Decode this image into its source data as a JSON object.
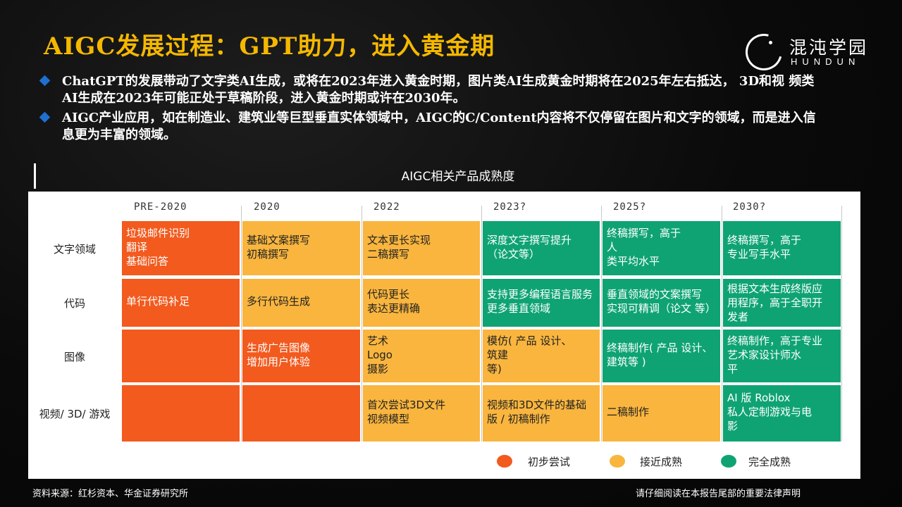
{
  "slide": {
    "title": "AIGC发展过程：GPT助力，进入黄金期",
    "logo": {
      "cn": "混沌学园",
      "en": "HUNDUN"
    },
    "bullets": [
      "ChatGPT的发展带动了文字类AI生成，或将在2023年进入黄金时期，图片类AI生成黄金时期将在2025年左右抵达， 3D和视 频类 AI生成在2023年可能正处于草稿阶段，进入黄金时期或许在2030年。",
      "AIGC产业应用，如在制造业、建筑业等巨型垂直实体领域中，AIGC的C/Content内容将不仅停留在图片和文字的领域，而是进入信息更为丰富的领域。"
    ],
    "chart_title": "AIGC相关产品成熟度",
    "footer_left": "资料来源：红杉资本、华金证券研究所",
    "footer_right": "请仔细阅读在本报告尾部的重要法律声明"
  },
  "chart_data": {
    "type": "table",
    "columns": [
      "PRE-2020",
      "2020",
      "2022",
      "2023?",
      "2025?",
      "2030?"
    ],
    "rows": [
      {
        "label": "文字领域",
        "cells": [
          {
            "text": "垃圾邮件识别\n翻译\n基础问答",
            "level": "初步尝试"
          },
          {
            "text": "基础文案撰写\n初稿撰写",
            "level": "接近成熟"
          },
          {
            "text": "文本更长实现\n二稿撰写",
            "level": "接近成熟"
          },
          {
            "text": "深度文字撰写提升\n（论文等）",
            "level": "完全成熟"
          },
          {
            "text": "终稿撰写，高于\n人\n类平均水平",
            "level": "完全成熟"
          },
          {
            "text": "终稿撰写，高于\n专业写手水平",
            "level": "完全成熟"
          }
        ]
      },
      {
        "label": "代码",
        "cells": [
          {
            "text": "单行代码补足",
            "level": "初步尝试"
          },
          {
            "text": "多行代码生成",
            "level": "接近成熟"
          },
          {
            "text": "代码更长\n表达更精确",
            "level": "接近成熟"
          },
          {
            "text": "支持更多编程语言服务\n更多垂直领域",
            "level": "完全成熟"
          },
          {
            "text": "垂直领域的文案撰写\n实现可精调（论文 等）",
            "level": "完全成熟"
          },
          {
            "text": "根据文本生成终版应\n用程序，高于全职开\n发者",
            "level": "完全成熟"
          }
        ]
      },
      {
        "label": "图像",
        "cells": [
          {
            "text": "",
            "level": "初步尝试"
          },
          {
            "text": "生成广告图像\n增加用户体验",
            "level": "初步尝试"
          },
          {
            "text": "艺术\nLogo\n摄影",
            "level": "接近成熟"
          },
          {
            "text": "模仿( 产品 设计、\n筑建\n等)",
            "level": "接近成熟"
          },
          {
            "text": "终稿制作( 产品 设计、\n建筑等 )",
            "level": "完全成熟"
          },
          {
            "text": "终稿制作，高于专业\n艺术家设计师水\n平",
            "level": "完全成熟"
          }
        ]
      },
      {
        "label": "视频/ 3D/ 游戏",
        "cells": [
          {
            "text": "",
            "level": "初步尝试"
          },
          {
            "text": "",
            "level": "初步尝试"
          },
          {
            "text": "首次尝试3D文件\n视频模型",
            "level": "接近成熟"
          },
          {
            "text": "视频和3D文件的基础\n版 / 初稿制作",
            "level": "接近成熟"
          },
          {
            "text": "二稿制作",
            "level": "接近成熟"
          },
          {
            "text": "AI 版 Roblox\n私人定制游戏与电\n影",
            "level": "完全成熟"
          }
        ]
      }
    ],
    "legend": [
      {
        "label": "初步尝试",
        "color": "#f25a1e"
      },
      {
        "label": "接近成熟",
        "color": "#f9b53e"
      },
      {
        "label": "完全成熟",
        "color": "#0fa374"
      }
    ],
    "colors": {
      "title": "#f5b800",
      "bullet": "#1f6fd0"
    }
  }
}
